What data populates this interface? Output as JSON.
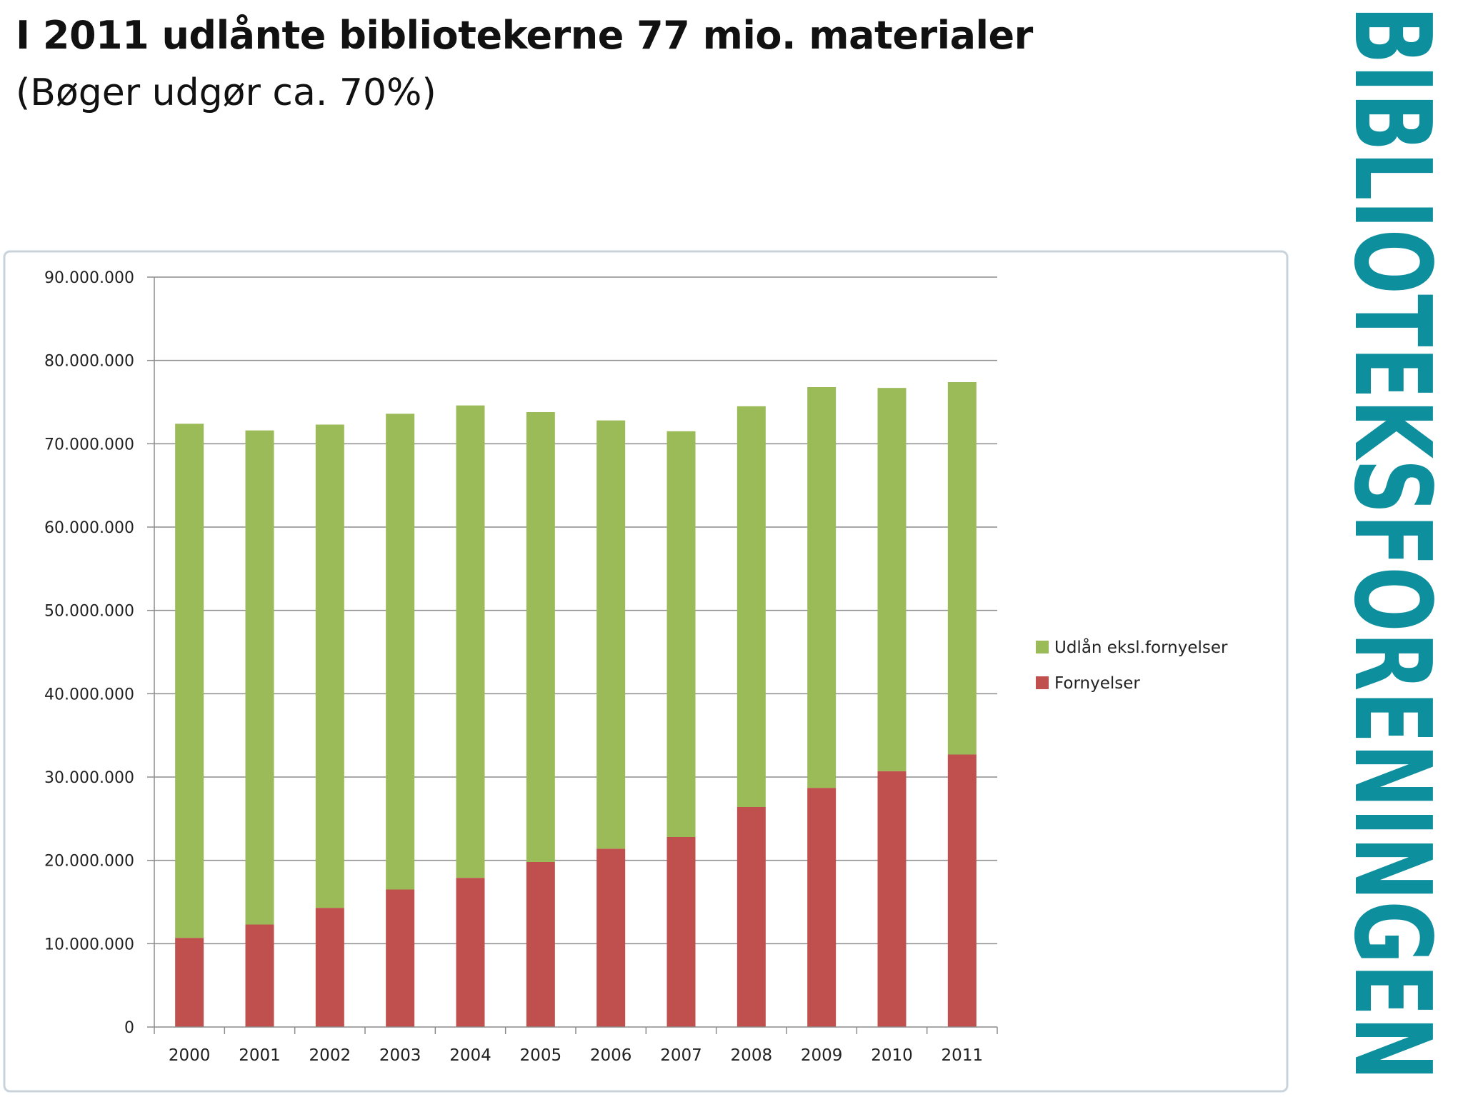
{
  "slide": {
    "title": "I 2011 udlånte bibliotekerne 77 mio. materialer",
    "subtitle": "(Bøger udgør ca. 70%)",
    "brand_text": "BIBLIOTEKSFORENINGEN",
    "brand_color": "#0e8f9e"
  },
  "chart_data": {
    "type": "bar",
    "stacked": true,
    "categories": [
      "2000",
      "2001",
      "2002",
      "2003",
      "2004",
      "2005",
      "2006",
      "2007",
      "2008",
      "2009",
      "2010",
      "2011"
    ],
    "series": [
      {
        "name": "Fornyelser",
        "color": "#c0504d",
        "values": [
          10700000,
          12300000,
          14300000,
          16500000,
          17900000,
          19800000,
          21400000,
          22800000,
          26400000,
          28700000,
          30700000,
          32700000
        ]
      },
      {
        "name": "Udlån eksl.fornyelser",
        "color": "#9bbb59",
        "values": [
          61700000,
          59300000,
          58000000,
          57100000,
          56700000,
          54000000,
          51400000,
          48700000,
          48100000,
          48100000,
          46000000,
          44700000
        ]
      }
    ],
    "title": "",
    "xlabel": "",
    "ylabel": "",
    "ylim": [
      0,
      90000000
    ],
    "yticks": [
      0,
      10000000,
      20000000,
      30000000,
      40000000,
      50000000,
      60000000,
      70000000,
      80000000,
      90000000
    ],
    "ytick_labels": [
      "0",
      "10.000.000",
      "20.000.000",
      "30.000.000",
      "40.000.000",
      "50.000.000",
      "60.000.000",
      "70.000.000",
      "80.000.000",
      "90.000.000"
    ],
    "grid": true,
    "legend_position": "right",
    "legend_order": [
      "Udlån eksl.fornyelser",
      "Fornyelser"
    ]
  }
}
